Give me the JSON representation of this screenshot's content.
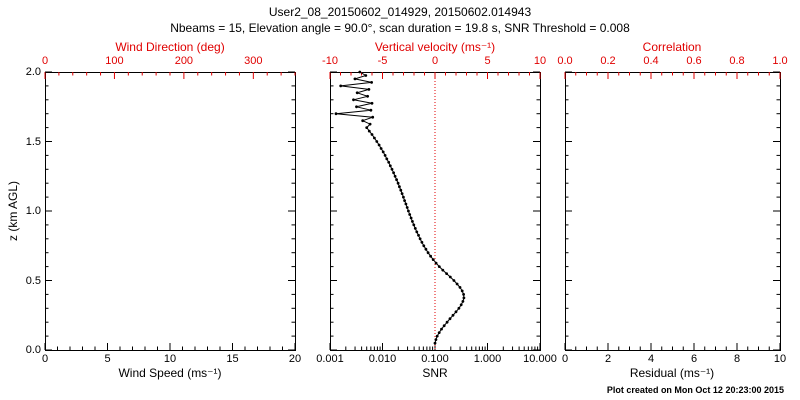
{
  "title": "User2_08_20150602_014929, 20150602.014943",
  "subtitle": "Nbeams = 15, Elevation angle = 90.0°, scan duration = 19.8 s, SNR Threshold = 0.008",
  "footer": "Plot created on Mon Oct 12 20:23:00 2015",
  "colors": {
    "top_axis_red": "#e00000",
    "axis_black": "#000000",
    "data_black": "#000000",
    "background": "#ffffff"
  },
  "chart_data": [
    {
      "name": "wind-speed-panel",
      "type": "line",
      "bottom_axis": {
        "label": "Wind Speed (ms⁻¹)",
        "ticks": [
          "0",
          "5",
          "10",
          "15",
          "20"
        ],
        "range": [
          0,
          20
        ],
        "scale": "linear",
        "minor": 1
      },
      "top_axis": {
        "label": "Wind Direction (deg)",
        "ticks": [
          "0",
          "100",
          "200",
          "300"
        ],
        "range": [
          0,
          360
        ],
        "scale": "linear",
        "minor": 20
      },
      "left_axis": {
        "label": "z (km AGL)",
        "ticks": [
          "0.0",
          "0.5",
          "1.0",
          "1.5",
          "2.0"
        ],
        "range": [
          0,
          2
        ],
        "minor": 0.1,
        "show_labels": true
      },
      "grid": false,
      "series": []
    },
    {
      "name": "snr-panel",
      "type": "line",
      "bottom_axis": {
        "label": "SNR",
        "ticks": [
          "0.001",
          "0.010",
          "0.100",
          "1.000",
          "10.000"
        ],
        "range": [
          0.001,
          10
        ],
        "scale": "log"
      },
      "top_axis": {
        "label": "Vertical velocity (ms⁻¹)",
        "ticks": [
          "-10",
          "-5",
          "0",
          "5",
          "10"
        ],
        "range": [
          -10,
          10
        ],
        "scale": "linear",
        "minor": 1
      },
      "left_axis": {
        "label": "",
        "ticks": [
          "0.0",
          "0.5",
          "1.0",
          "1.5",
          "2.0"
        ],
        "range": [
          0,
          2
        ],
        "minor": 0.1,
        "show_labels": false
      },
      "reference_line": {
        "axis": "top",
        "value": 0,
        "style": "dotted",
        "color": "#e00000"
      },
      "grid": false,
      "series": [
        {
          "name": "SNR profile",
          "marker": "dot",
          "color": "#000000",
          "points_format": "[z_km, snr]",
          "points": [
            [
              0.05,
              0.1
            ],
            [
              0.075,
              0.104
            ],
            [
              0.1,
              0.11
            ],
            [
              0.125,
              0.12
            ],
            [
              0.15,
              0.133
            ],
            [
              0.175,
              0.15
            ],
            [
              0.2,
              0.17
            ],
            [
              0.225,
              0.193
            ],
            [
              0.25,
              0.22
            ],
            [
              0.275,
              0.251
            ],
            [
              0.3,
              0.285
            ],
            [
              0.325,
              0.316
            ],
            [
              0.35,
              0.34
            ],
            [
              0.375,
              0.355
            ],
            [
              0.4,
              0.351
            ],
            [
              0.425,
              0.33
            ],
            [
              0.45,
              0.299
            ],
            [
              0.475,
              0.264
            ],
            [
              0.5,
              0.229
            ],
            [
              0.525,
              0.196
            ],
            [
              0.55,
              0.166
            ],
            [
              0.575,
              0.141
            ],
            [
              0.6,
              0.121
            ],
            [
              0.625,
              0.105
            ],
            [
              0.65,
              0.0925
            ],
            [
              0.675,
              0.0824
            ],
            [
              0.7,
              0.074
            ],
            [
              0.725,
              0.0671
            ],
            [
              0.75,
              0.0613
            ],
            [
              0.775,
              0.0564
            ],
            [
              0.8,
              0.0521
            ],
            [
              0.825,
              0.0484
            ],
            [
              0.85,
              0.0451
            ],
            [
              0.875,
              0.0422
            ],
            [
              0.9,
              0.0395
            ],
            [
              0.925,
              0.0371
            ],
            [
              0.95,
              0.035
            ],
            [
              0.975,
              0.033
            ],
            [
              1.0,
              0.0312
            ],
            [
              1.025,
              0.0295
            ],
            [
              1.05,
              0.0279
            ],
            [
              1.075,
              0.0264
            ],
            [
              1.1,
              0.025
            ],
            [
              1.125,
              0.0236
            ],
            [
              1.15,
              0.0223
            ],
            [
              1.175,
              0.021
            ],
            [
              1.2,
              0.0198
            ],
            [
              1.225,
              0.0186
            ],
            [
              1.25,
              0.0174
            ],
            [
              1.275,
              0.0163
            ],
            [
              1.3,
              0.0152
            ],
            [
              1.325,
              0.0141
            ],
            [
              1.35,
              0.0131
            ],
            [
              1.375,
              0.0121
            ],
            [
              1.4,
              0.0112
            ],
            [
              1.425,
              0.0103
            ],
            [
              1.45,
              0.0094
            ],
            [
              1.475,
              0.0086
            ],
            [
              1.5,
              0.0078
            ],
            [
              1.525,
              0.007
            ],
            [
              1.55,
              0.0063
            ],
            [
              1.575,
              0.0056
            ],
            [
              1.6,
              0.005
            ],
            [
              1.625,
              0.0058
            ],
            [
              1.65,
              0.0042
            ],
            [
              1.675,
              0.0065
            ],
            [
              1.7,
              0.0013
            ],
            [
              1.725,
              0.006
            ],
            [
              1.75,
              0.0032
            ],
            [
              1.775,
              0.0063
            ],
            [
              1.8,
              0.0028
            ],
            [
              1.825,
              0.0052
            ],
            [
              1.85,
              0.0033
            ],
            [
              1.875,
              0.0055
            ],
            [
              1.9,
              0.0016
            ],
            [
              1.925,
              0.0062
            ],
            [
              1.95,
              0.003
            ],
            [
              1.975,
              0.0048
            ],
            [
              2.0,
              0.0037
            ]
          ]
        }
      ]
    },
    {
      "name": "residual-panel",
      "type": "line",
      "bottom_axis": {
        "label": "Residual (ms⁻¹)",
        "ticks": [
          "0",
          "2",
          "4",
          "6",
          "8",
          "10"
        ],
        "range": [
          0,
          10
        ],
        "scale": "linear",
        "minor": 0.5
      },
      "top_axis": {
        "label": "Correlation",
        "ticks": [
          "0.0",
          "0.2",
          "0.4",
          "0.6",
          "0.8",
          "1.0"
        ],
        "range": [
          0,
          1
        ],
        "scale": "linear",
        "minor": 0.05
      },
      "left_axis": {
        "label": "",
        "ticks": [
          "0.0",
          "0.5",
          "1.0",
          "1.5",
          "2.0"
        ],
        "range": [
          0,
          2
        ],
        "minor": 0.1,
        "show_labels": false
      },
      "grid": false,
      "series": []
    }
  ]
}
